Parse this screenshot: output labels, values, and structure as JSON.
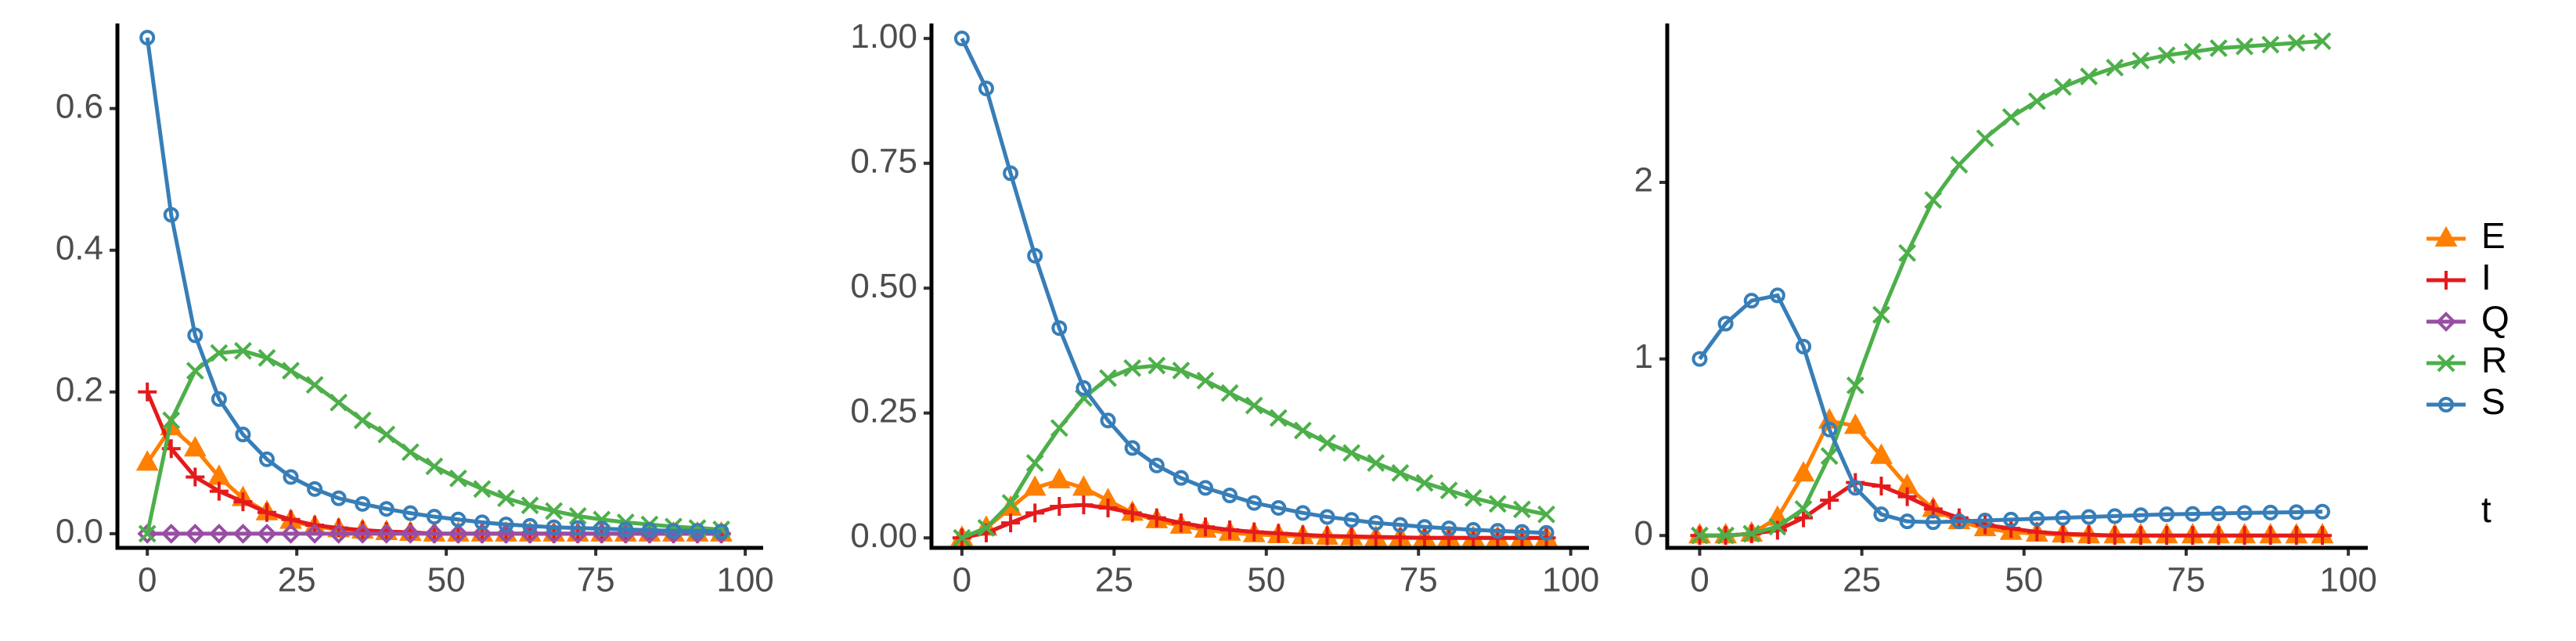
{
  "chart_data": [
    {
      "type": "line",
      "legend_title": "t",
      "x": [
        0,
        4,
        8,
        12,
        16,
        20,
        24,
        28,
        32,
        36,
        40,
        44,
        48,
        52,
        56,
        60,
        64,
        68,
        72,
        76,
        80,
        84,
        88,
        92,
        96
      ],
      "xlim": [
        -5,
        103
      ],
      "xticks": [
        0,
        25,
        50,
        75,
        100
      ],
      "ylim": [
        -0.02,
        0.72
      ],
      "yticks": [
        {
          "value": 0,
          "label": "0.0"
        },
        0.2,
        0.4,
        0.6
      ],
      "series": [
        {
          "name": "E",
          "color": "#ff7f00",
          "marker": "triangle",
          "values": [
            0.1,
            0.15,
            0.12,
            0.08,
            0.05,
            0.03,
            0.018,
            0.01,
            0.006,
            0.004,
            0.002,
            0.001,
            0,
            0,
            0,
            0,
            0,
            0,
            0,
            0,
            0,
            0,
            0,
            0,
            0
          ]
        },
        {
          "name": "I",
          "color": "#e41a1c",
          "marker": "plus",
          "values": [
            0.2,
            0.12,
            0.08,
            0.06,
            0.045,
            0.03,
            0.02,
            0.012,
            0.008,
            0.005,
            0.003,
            0.002,
            0,
            0,
            0,
            0,
            0,
            0,
            0,
            0,
            0,
            0,
            0,
            0,
            0
          ]
        },
        {
          "name": "Q",
          "color": "#984ea3",
          "marker": "diamond",
          "values": [
            0,
            0,
            0,
            0,
            0,
            0,
            0,
            0,
            0,
            0,
            0,
            0,
            0,
            0,
            0,
            0,
            0,
            0,
            0,
            0,
            0,
            0,
            0,
            0,
            0
          ]
        },
        {
          "name": "R",
          "color": "#4daf4a",
          "marker": "cross",
          "values": [
            0,
            0.16,
            0.23,
            0.255,
            0.258,
            0.248,
            0.23,
            0.21,
            0.185,
            0.16,
            0.14,
            0.115,
            0.095,
            0.078,
            0.063,
            0.05,
            0.04,
            0.032,
            0.025,
            0.02,
            0.016,
            0.013,
            0.01,
            0.008,
            0.006
          ]
        },
        {
          "name": "S",
          "color": "#377eb8",
          "marker": "circle",
          "values": [
            0.7,
            0.45,
            0.28,
            0.19,
            0.14,
            0.105,
            0.08,
            0.063,
            0.05,
            0.042,
            0.035,
            0.029,
            0.024,
            0.02,
            0.016,
            0.013,
            0.011,
            0.009,
            0.008,
            0.007,
            0.006,
            0.005,
            0.004,
            0.004,
            0.003
          ]
        }
      ]
    },
    {
      "type": "line",
      "x": [
        0,
        4,
        8,
        12,
        16,
        20,
        24,
        28,
        32,
        36,
        40,
        44,
        48,
        52,
        56,
        60,
        64,
        68,
        72,
        76,
        80,
        84,
        88,
        92,
        96
      ],
      "xlim": [
        -5,
        103
      ],
      "xticks": [
        0,
        25,
        50,
        75,
        100
      ],
      "ylim": [
        -0.02,
        1.03
      ],
      "yticks": [
        {
          "value": 0,
          "label": "0.00"
        },
        {
          "value": 0.25,
          "label": "0.25"
        },
        {
          "value": 0.5,
          "label": "0.50"
        },
        {
          "value": 0.75,
          "label": "0.75"
        },
        {
          "value": 1,
          "label": "1.00"
        }
      ],
      "series": [
        {
          "name": "E",
          "color": "#ff7f00",
          "marker": "triangle",
          "values": [
            0,
            0.02,
            0.06,
            0.1,
            0.115,
            0.1,
            0.075,
            0.05,
            0.035,
            0.024,
            0.016,
            0.01,
            0.007,
            0.005,
            0.003,
            0.002,
            0.001,
            0,
            0,
            0,
            0,
            0,
            0,
            0,
            0
          ]
        },
        {
          "name": "I",
          "color": "#e41a1c",
          "marker": "plus",
          "values": [
            0,
            0.01,
            0.03,
            0.05,
            0.063,
            0.066,
            0.06,
            0.05,
            0.04,
            0.03,
            0.022,
            0.016,
            0.012,
            0.009,
            0.006,
            0.004,
            0.003,
            0.002,
            0.001,
            0,
            0,
            0,
            0,
            0,
            0
          ]
        },
        {
          "name": "R",
          "color": "#4daf4a",
          "marker": "cross",
          "values": [
            0,
            0.02,
            0.07,
            0.15,
            0.22,
            0.28,
            0.32,
            0.34,
            0.345,
            0.335,
            0.315,
            0.29,
            0.265,
            0.24,
            0.215,
            0.19,
            0.17,
            0.15,
            0.13,
            0.11,
            0.095,
            0.08,
            0.068,
            0.057,
            0.047
          ]
        },
        {
          "name": "S",
          "color": "#377eb8",
          "marker": "circle",
          "values": [
            1.0,
            0.9,
            0.73,
            0.565,
            0.42,
            0.3,
            0.235,
            0.18,
            0.145,
            0.12,
            0.1,
            0.085,
            0.07,
            0.06,
            0.05,
            0.042,
            0.036,
            0.03,
            0.026,
            0.022,
            0.019,
            0.016,
            0.014,
            0.012,
            0.01
          ]
        }
      ]
    },
    {
      "type": "line",
      "x": [
        0,
        4,
        8,
        12,
        16,
        20,
        24,
        28,
        32,
        36,
        40,
        44,
        48,
        52,
        56,
        60,
        64,
        68,
        72,
        76,
        80,
        84,
        88,
        92,
        96
      ],
      "xlim": [
        -5,
        103
      ],
      "xticks": [
        0,
        25,
        50,
        75,
        100
      ],
      "ylim": [
        -0.07,
        2.9
      ],
      "yticks": [
        0,
        1,
        2
      ],
      "series": [
        {
          "name": "E",
          "color": "#ff7f00",
          "marker": "triangle",
          "values": [
            0,
            0,
            0.01,
            0.1,
            0.35,
            0.65,
            0.62,
            0.45,
            0.28,
            0.15,
            0.08,
            0.04,
            0.02,
            0.01,
            0.005,
            0,
            0,
            0,
            0,
            0,
            0,
            0,
            0,
            0,
            0
          ]
        },
        {
          "name": "I",
          "color": "#e41a1c",
          "marker": "plus",
          "values": [
            0,
            0,
            0.01,
            0.03,
            0.1,
            0.2,
            0.3,
            0.28,
            0.22,
            0.15,
            0.1,
            0.06,
            0.04,
            0.02,
            0.01,
            0.005,
            0,
            0,
            0,
            0,
            0,
            0,
            0,
            0,
            0
          ]
        },
        {
          "name": "R",
          "color": "#4daf4a",
          "marker": "cross",
          "values": [
            0,
            0,
            0.01,
            0.05,
            0.15,
            0.45,
            0.85,
            1.25,
            1.6,
            1.9,
            2.1,
            2.25,
            2.37,
            2.46,
            2.54,
            2.6,
            2.65,
            2.69,
            2.72,
            2.74,
            2.76,
            2.77,
            2.78,
            2.79,
            2.8
          ]
        },
        {
          "name": "S",
          "color": "#377eb8",
          "marker": "circle",
          "values": [
            1.0,
            1.2,
            1.33,
            1.36,
            1.07,
            0.6,
            0.27,
            0.12,
            0.08,
            0.075,
            0.08,
            0.085,
            0.09,
            0.095,
            0.1,
            0.105,
            0.11,
            0.115,
            0.12,
            0.122,
            0.125,
            0.128,
            0.13,
            0.132,
            0.135
          ]
        }
      ]
    }
  ]
}
